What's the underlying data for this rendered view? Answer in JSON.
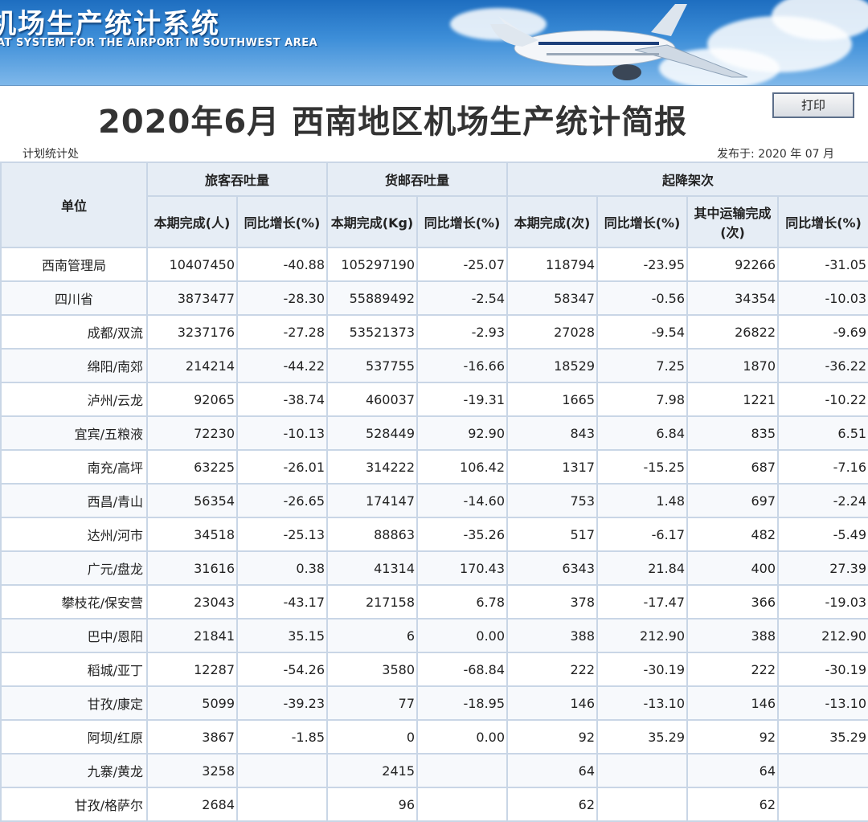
{
  "banner": {
    "title": "机场生产统计系统",
    "subtitle": "AT SYSTEM FOR THE AIRPORT IN SOUTHWEST AREA"
  },
  "report": {
    "title": "2020年6月 西南地区机场生产统计简报",
    "print_label": "打印",
    "department": "计划统计处",
    "published": "发布于:  2020 年 07 月"
  },
  "table": {
    "groups": {
      "unit": "单位",
      "passenger": "旅客吞吐量",
      "cargo": "货邮吞吐量",
      "flights": "起降架次"
    },
    "columns": [
      "本期完成(人)",
      "同比增长(%)",
      "本期完成(Kg)",
      "同比增长(%)",
      "本期完成(次)",
      "同比增长(%)",
      "其中运输完成(次)",
      "同比增长(%)"
    ],
    "rows": [
      [
        "西南管理局",
        "10407450",
        "-40.88",
        "105297190",
        "-25.07",
        "118794",
        "-23.95",
        "92266",
        "-31.05"
      ],
      [
        "四川省",
        "3873477",
        "-28.30",
        "55889492",
        "-2.54",
        "58347",
        "-0.56",
        "34354",
        "-10.03"
      ],
      [
        "成都/双流",
        "3237176",
        "-27.28",
        "53521373",
        "-2.93",
        "27028",
        "-9.54",
        "26822",
        "-9.69"
      ],
      [
        "绵阳/南郊",
        "214214",
        "-44.22",
        "537755",
        "-16.66",
        "18529",
        "7.25",
        "1870",
        "-36.22"
      ],
      [
        "泸州/云龙",
        "92065",
        "-38.74",
        "460037",
        "-19.31",
        "1665",
        "7.98",
        "1221",
        "-10.22"
      ],
      [
        "宜宾/五粮液",
        "72230",
        "-10.13",
        "528449",
        "92.90",
        "843",
        "6.84",
        "835",
        "6.51"
      ],
      [
        "南充/高坪",
        "63225",
        "-26.01",
        "314222",
        "106.42",
        "1317",
        "-15.25",
        "687",
        "-7.16"
      ],
      [
        "西昌/青山",
        "56354",
        "-26.65",
        "174147",
        "-14.60",
        "753",
        "1.48",
        "697",
        "-2.24"
      ],
      [
        "达州/河市",
        "34518",
        "-25.13",
        "88863",
        "-35.26",
        "517",
        "-6.17",
        "482",
        "-5.49"
      ],
      [
        "广元/盘龙",
        "31616",
        "0.38",
        "41314",
        "170.43",
        "6343",
        "21.84",
        "400",
        "27.39"
      ],
      [
        "攀枝花/保安营",
        "23043",
        "-43.17",
        "217158",
        "6.78",
        "378",
        "-17.47",
        "366",
        "-19.03"
      ],
      [
        "巴中/恩阳",
        "21841",
        "35.15",
        "6",
        "0.00",
        "388",
        "212.90",
        "388",
        "212.90"
      ],
      [
        "稻城/亚丁",
        "12287",
        "-54.26",
        "3580",
        "-68.84",
        "222",
        "-30.19",
        "222",
        "-30.19"
      ],
      [
        "甘孜/康定",
        "5099",
        "-39.23",
        "77",
        "-18.95",
        "146",
        "-13.10",
        "146",
        "-13.10"
      ],
      [
        "阿坝/红原",
        "3867",
        "-1.85",
        "0",
        "0.00",
        "92",
        "35.29",
        "92",
        "35.29"
      ],
      [
        "九寨/黄龙",
        "3258",
        "",
        "2415",
        "",
        "64",
        "",
        "64",
        ""
      ],
      [
        "甘孜/格萨尔",
        "2684",
        "",
        "96",
        "",
        "62",
        "",
        "62",
        ""
      ]
    ]
  }
}
